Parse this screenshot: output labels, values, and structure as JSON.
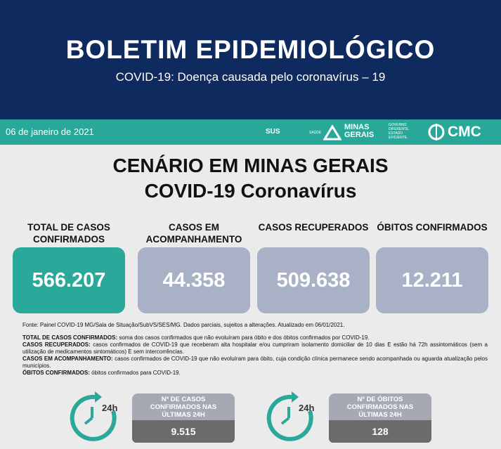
{
  "header": {
    "title": "BOLETIM EPIDEMIOLÓGICO",
    "subtitle": "COVID-19: Doença causada pelo coronavírus – 19"
  },
  "bar": {
    "date": "06 de janeiro de 2021",
    "logos": {
      "sus": "SUS",
      "saude": "SAÚDE",
      "minas": "MINAS GERAIS",
      "slogan": "GOVERNO DIFERENTE. ESTADO EFICIENTE.",
      "cmc": "CMC"
    }
  },
  "heading": {
    "line1": "CENÁRIO EM MINAS GERAIS",
    "line2": "COVID-19 Coronavírus"
  },
  "cards": [
    {
      "label": "TOTAL DE CASOS CONFIRMADOS",
      "value": "566.207"
    },
    {
      "label": "CASOS EM ACOMPANHAMENTO",
      "value": "44.358"
    },
    {
      "label": "CASOS RECUPERADOS",
      "value": "509.638"
    },
    {
      "label": "ÓBITOS CONFIRMADOS",
      "value": "12.211"
    }
  ],
  "source": "Fonte: Painel COVID-19 MG/Sala de Situação/SubVS/SES/MG. Dados parciais, sujeitos a alterações. Atualizado em 06/01/2021.",
  "definitions": [
    {
      "term": "TOTAL DE CASOS CONFIRMADOS:",
      "text": "soma dos casos confirmados que não evoluíram para óbito e dos óbitos confirmados por COVID-19."
    },
    {
      "term": "CASOS RECUPERADOS:",
      "text": "casos confirmados de COVID-19 que receberam alta hospitalar e/ou cumpriram isolamento domiciliar de 10 dias E estão há 72h assintomáticos (sem a utilização de medicamentos sintomáticos) E sem intercorrências."
    },
    {
      "term": "CASOS EM ACOMPANHAMENTO:",
      "text": "casos confirmados de COVID-19 que não evoluíram para óbito, cuja condição clínica permanece sendo acompanhada ou aguarda atualização pelos municípios."
    },
    {
      "term": "ÓBITOS CONFIRMADOS:",
      "text": "óbitos confirmados para COVID-19."
    }
  ],
  "daily": [
    {
      "icon_text": "24h",
      "label": "Nº DE CASOS CONFIRMADOS NAS ÚLTIMAS 24H",
      "value": "9.515"
    },
    {
      "icon_text": "24h",
      "label": "Nº DE ÓBITOS CONFIRMADOS NAS ÚLTIMAS 24H",
      "value": "128"
    }
  ]
}
